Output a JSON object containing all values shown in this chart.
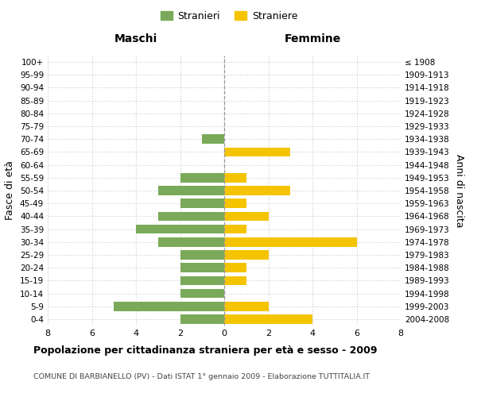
{
  "age_groups": [
    "100+",
    "95-99",
    "90-94",
    "85-89",
    "80-84",
    "75-79",
    "70-74",
    "65-69",
    "60-64",
    "55-59",
    "50-54",
    "45-49",
    "40-44",
    "35-39",
    "30-34",
    "25-29",
    "20-24",
    "15-19",
    "10-14",
    "5-9",
    "0-4"
  ],
  "birth_years": [
    "≤ 1908",
    "1909-1913",
    "1914-1918",
    "1919-1923",
    "1924-1928",
    "1929-1933",
    "1934-1938",
    "1939-1943",
    "1944-1948",
    "1949-1953",
    "1954-1958",
    "1959-1963",
    "1964-1968",
    "1969-1973",
    "1974-1978",
    "1979-1983",
    "1984-1988",
    "1989-1993",
    "1994-1998",
    "1999-2003",
    "2004-2008"
  ],
  "maschi": [
    0,
    0,
    0,
    0,
    0,
    0,
    1,
    0,
    0,
    2,
    3,
    2,
    3,
    4,
    3,
    2,
    2,
    2,
    2,
    5,
    2
  ],
  "femmine": [
    0,
    0,
    0,
    0,
    0,
    0,
    0,
    3,
    0,
    1,
    3,
    1,
    2,
    1,
    6,
    2,
    1,
    1,
    0,
    2,
    4
  ],
  "color_maschi": "#7aaa59",
  "color_femmine": "#f5c400",
  "title": "Popolazione per cittadinanza straniera per età e sesso - 2009",
  "subtitle": "COMUNE DI BARBIANELLO (PV) - Dati ISTAT 1° gennaio 2009 - Elaborazione TUTTITALIA.IT",
  "ylabel_left": "Fasce di età",
  "ylabel_right": "Anni di nascita",
  "xlabel_left": "Maschi",
  "xlabel_right": "Femmine",
  "legend_maschi": "Stranieri",
  "legend_femmine": "Straniere",
  "xlim": 8,
  "background_color": "#ffffff",
  "grid_color": "#cccccc"
}
